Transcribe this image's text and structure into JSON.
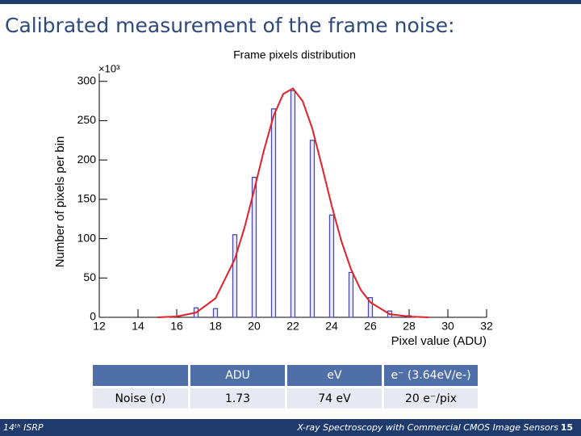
{
  "slide_title": "Calibrated measurement of the frame noise:",
  "chart_data": {
    "type": "bar",
    "title": "Frame pixels distribution",
    "x_label": "Pixel value (ADU)",
    "y_label": "Number of pixels per bin",
    "y_scale_label": "×10³",
    "x": [
      17,
      18,
      19,
      20,
      21,
      22,
      23,
      24,
      25,
      26,
      27,
      28
    ],
    "values": [
      12,
      11,
      105,
      178,
      265,
      288,
      225,
      130,
      57,
      25,
      8,
      2
    ],
    "color": "#4a4aa8",
    "fit": {
      "x": [
        15,
        16,
        17,
        18,
        19,
        19.5,
        20,
        20.5,
        21,
        21.5,
        22,
        22.5,
        23,
        23.5,
        24,
        24.5,
        25,
        25.5,
        26,
        27,
        28,
        29
      ],
      "values": [
        0,
        1,
        6,
        24,
        74,
        114,
        162,
        212,
        256,
        284,
        291,
        275,
        240,
        192,
        142,
        97,
        61,
        35,
        19,
        4,
        1,
        0
      ],
      "color": "#e0202a"
    },
    "xlim": [
      12,
      32
    ],
    "xticks": [
      12,
      14,
      16,
      18,
      20,
      22,
      24,
      26,
      28,
      30,
      32
    ],
    "ylim": [
      0,
      310
    ],
    "yticks": [
      0,
      50,
      100,
      150,
      200,
      250,
      300
    ]
  },
  "table": {
    "header": [
      "ADU",
      "eV",
      "e⁻ (3.64eV/e-)"
    ],
    "rows": [
      [
        "Noise (σ)",
        "1.73",
        "74 eV",
        "20 e⁻/pix"
      ]
    ]
  },
  "footer": {
    "left": "14ᵗʰ ISRP",
    "center": "X-ray Spectroscopy with Commercial CMOS Image Sensors",
    "page": "15"
  }
}
